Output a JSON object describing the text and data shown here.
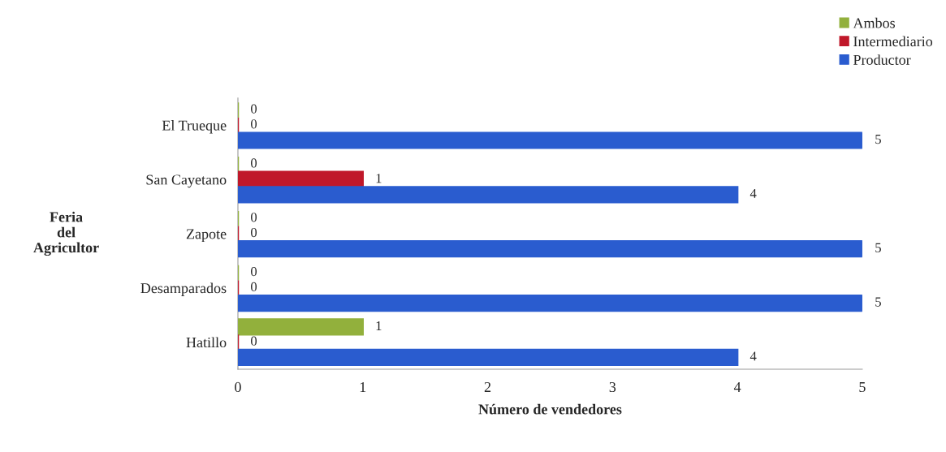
{
  "chart_data": {
    "type": "bar",
    "orientation": "horizontal",
    "categories": [
      "El Trueque",
      "San Cayetano",
      "Zapote",
      "Desamparados",
      "Hatillo"
    ],
    "series": [
      {
        "name": "Ambos",
        "color": "#92b03c",
        "values": [
          0,
          0,
          0,
          0,
          1
        ]
      },
      {
        "name": "Intermediario",
        "color": "#c0182a",
        "values": [
          0,
          1,
          0,
          0,
          0
        ]
      },
      {
        "name": "Productor",
        "color": "#2a5ccf",
        "values": [
          5,
          4,
          5,
          5,
          4
        ]
      }
    ],
    "xlabel": "Número de vendedores",
    "ylabel": "Feria\ndel\nAgricultor",
    "xlim": [
      0,
      5
    ],
    "xticks": [
      0,
      1,
      2,
      3,
      4,
      5
    ],
    "data_labels": true,
    "legend": "top right",
    "grid": false
  }
}
